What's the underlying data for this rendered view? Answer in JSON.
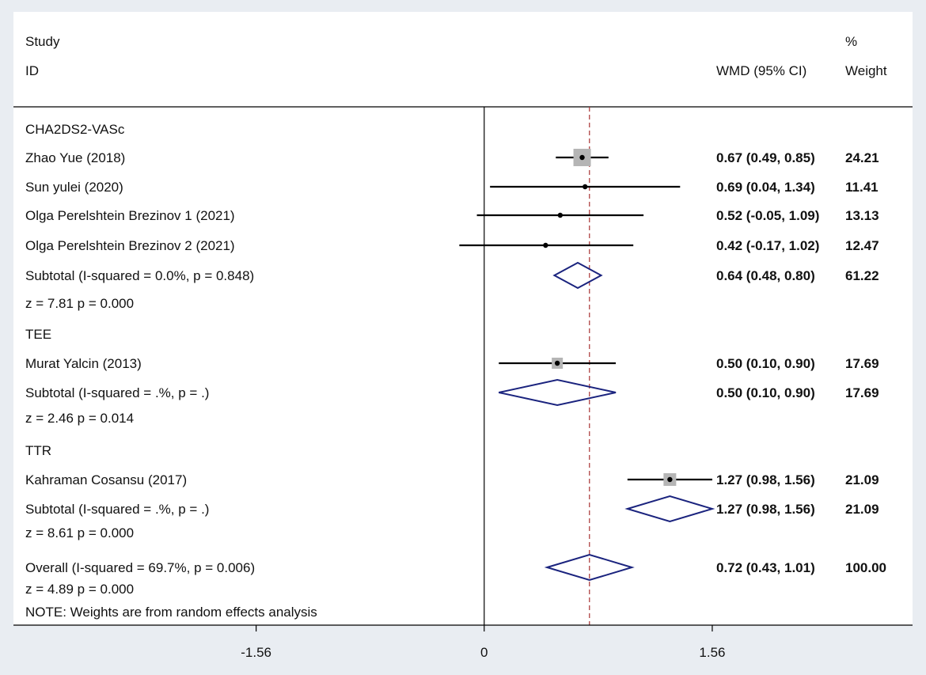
{
  "chart_data": {
    "type": "forest",
    "header": {
      "study_label_1": "Study",
      "study_label_2": "ID",
      "effect_label": "WMD (95% CI)",
      "weight_label_1": "%",
      "weight_label_2": "Weight"
    },
    "axis": {
      "ticks": [
        {
          "value": -1.56,
          "label": "-1.56"
        },
        {
          "value": 0,
          "label": "0"
        },
        {
          "value": 1.56,
          "label": "1.56"
        }
      ],
      "xlim": [
        -3.22,
        2.93
      ],
      "null_line": 0,
      "overall_line": 0.72
    },
    "rows": [
      {
        "kind": "group",
        "label": "CHA2DS2-VASc"
      },
      {
        "kind": "study",
        "label": "Zhao Yue (2018)",
        "est": 0.67,
        "lo": 0.49,
        "hi": 0.85,
        "ci_text": "0.67 (0.49, 0.85)",
        "weight": "24.21",
        "box": 22
      },
      {
        "kind": "study",
        "label": "Sun yulei (2020)",
        "est": 0.69,
        "lo": 0.04,
        "hi": 1.34,
        "ci_text": "0.69 (0.04, 1.34)",
        "weight": "11.41",
        "box": 0
      },
      {
        "kind": "study",
        "label": "Olga Perelshtein Brezinov 1 (2021)",
        "est": 0.52,
        "lo": -0.05,
        "hi": 1.09,
        "ci_text": "0.52 (-0.05, 1.09)",
        "weight": "13.13",
        "box": 0
      },
      {
        "kind": "study",
        "label": "Olga Perelshtein Brezinov 2 (2021)",
        "est": 0.42,
        "lo": -0.17,
        "hi": 1.02,
        "ci_text": "0.42 (-0.17, 1.02)",
        "weight": "12.47",
        "box": 0
      },
      {
        "kind": "subtotal",
        "label": "Subtotal  (I-squared = 0.0%, p = 0.848)",
        "est": 0.64,
        "lo": 0.48,
        "hi": 0.8,
        "ci_text": "0.64 (0.48, 0.80)",
        "weight": "61.22"
      },
      {
        "kind": "stat",
        "label": "z = 7.81     p = 0.000"
      },
      {
        "kind": "group",
        "label": "TEE"
      },
      {
        "kind": "study",
        "label": "Murat Yalcin (2013)",
        "est": 0.5,
        "lo": 0.1,
        "hi": 0.9,
        "ci_text": "0.50 (0.10, 0.90)",
        "weight": "17.69",
        "box": 14
      },
      {
        "kind": "subtotal",
        "label": "Subtotal  (I-squared = .%, p = .)",
        "est": 0.5,
        "lo": 0.1,
        "hi": 0.9,
        "ci_text": "0.50 (0.10, 0.90)",
        "weight": "17.69"
      },
      {
        "kind": "stat",
        "label": "z =  2.46     p = 0.014"
      },
      {
        "kind": "group",
        "label": "TTR"
      },
      {
        "kind": "study",
        "label": "Kahraman Cosansu (2017)",
        "est": 1.27,
        "lo": 0.98,
        "hi": 1.56,
        "ci_text": "1.27 (0.98, 1.56)",
        "weight": "21.09",
        "box": 16
      },
      {
        "kind": "subtotal",
        "label": "Subtotal  (I-squared = .%, p = .)",
        "est": 1.27,
        "lo": 0.98,
        "hi": 1.56,
        "ci_text": "1.27 (0.98, 1.56)",
        "weight": "21.09"
      },
      {
        "kind": "stat",
        "label": "z =  8.61     p = 0.000"
      },
      {
        "kind": "overall",
        "label": "Overall  (I-squared = 69.7%, p = 0.006)",
        "est": 0.72,
        "lo": 0.43,
        "hi": 1.01,
        "ci_text": "0.72 (0.43, 1.01)",
        "weight": "100.00"
      },
      {
        "kind": "stat",
        "label": "z =  4.89     p = 0.000"
      },
      {
        "kind": "note",
        "label": "NOTE: Weights are from random effects analysis"
      }
    ],
    "colors": {
      "background": "#e9edf2",
      "plot_area": "#ffffff",
      "diamond": "#1a237e",
      "overall_line": "#a83232",
      "box": "#b5b5b5"
    }
  }
}
